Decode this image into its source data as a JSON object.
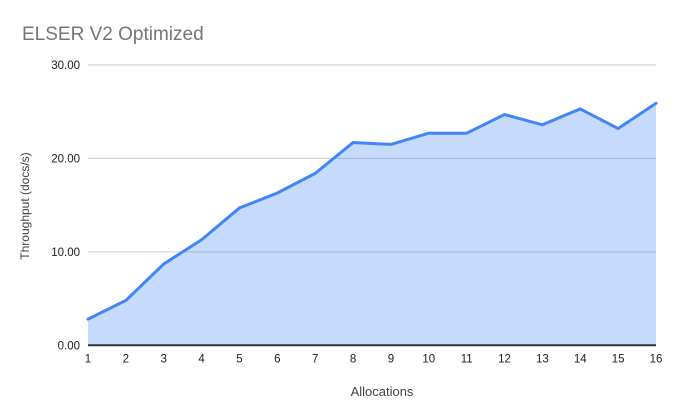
{
  "colors": {
    "background": "#ffffff",
    "line": "#4285f4",
    "fill": "rgba(66,133,244,0.30)",
    "title_text": "#757575",
    "axis_title_text": "#424242",
    "tick_text": "#202124",
    "gridline": "#cccccc",
    "baseline": "#333333"
  },
  "chart_data": {
    "type": "area",
    "title": "ELSER V2 Optimized",
    "xlabel": "Allocations",
    "ylabel": "Throughput (docs/s)",
    "categories": [
      "1",
      "2",
      "3",
      "4",
      "5",
      "6",
      "7",
      "8",
      "9",
      "10",
      "11",
      "12",
      "13",
      "14",
      "15",
      "16"
    ],
    "values": [
      2.8,
      4.8,
      8.7,
      11.3,
      14.7,
      16.3,
      18.4,
      21.7,
      21.5,
      22.7,
      22.7,
      24.7,
      23.6,
      25.3,
      23.2,
      25.9
    ],
    "ylim": [
      0,
      30
    ],
    "yticks": [
      0,
      10,
      20,
      30
    ],
    "ytick_labels": [
      "0.00",
      "10.00",
      "20.00",
      "30.00"
    ],
    "grid": true,
    "legend": "none"
  }
}
